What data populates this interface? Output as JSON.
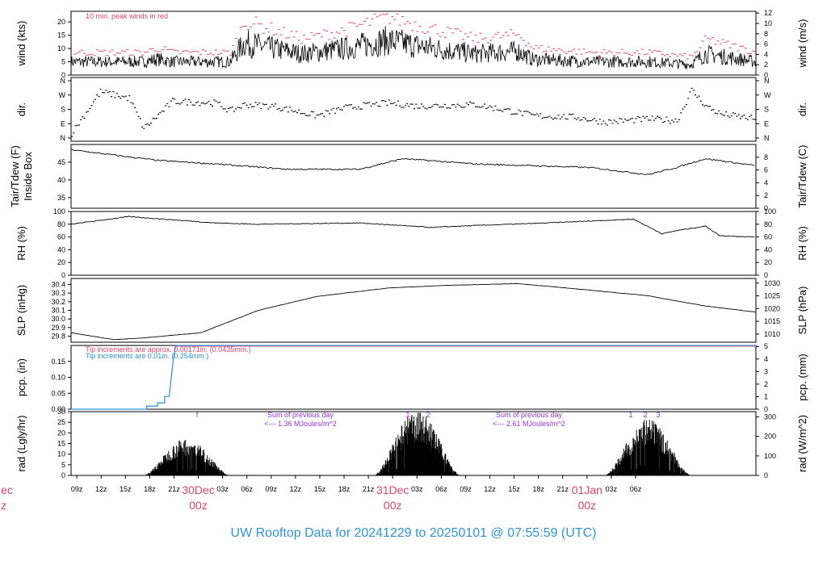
{
  "footer_title": "UW Rooftop Data for 20241229  to  20250101 @ 07:55:59  (UTC)",
  "colors": {
    "red": "#d9456a",
    "blue": "#2b8fd3",
    "purple": "#9b30d9",
    "foot": "#2e94d6"
  },
  "time_axis": {
    "ticks": [
      "09z",
      "12z",
      "15z",
      "18z",
      "21z",
      "00z",
      "03z",
      "06z",
      "09z",
      "12z",
      "15z",
      "18z",
      "21z",
      "00z",
      "03z",
      "06z",
      "09z",
      "12z",
      "15z",
      "18z",
      "21z",
      "00z",
      "03z",
      "06z"
    ],
    "day_labels": [
      {
        "date": "30Dec",
        "hour": "00z"
      },
      {
        "date": "31Dec",
        "hour": "00z"
      },
      {
        "date": "01Jan",
        "hour": "00z"
      }
    ],
    "edge_label": {
      "date": "ec",
      "hour": "z"
    }
  },
  "chart_data": [
    {
      "id": "wind",
      "type": "line",
      "ylabel": "wind (kts)",
      "ylabel_right": "wind (m/s)",
      "ylim": [
        0,
        24
      ],
      "yticks": [
        0,
        5,
        10,
        15,
        20
      ],
      "yticks_right": [
        0,
        2,
        4,
        6,
        8,
        10,
        12
      ],
      "annotation": "10 min. peak winds in red",
      "series_profile": {
        "x_hours": [
          0,
          10,
          12,
          14,
          22,
          24,
          26,
          32,
          38,
          44,
          48,
          56,
          62,
          64,
          72,
          74,
          80,
          86,
          88,
          95
        ],
        "y_kts": [
          5,
          5,
          6,
          5,
          5,
          12,
          11,
          8,
          10,
          13,
          11,
          8,
          9,
          6,
          5,
          5,
          5,
          4,
          8,
          5
        ]
      }
    },
    {
      "id": "dir",
      "type": "scatter",
      "ylabel": "dir.",
      "ylabel_right": "dir.",
      "yticks": [
        "N",
        "E",
        "S",
        "W",
        "N"
      ]
    },
    {
      "id": "temp",
      "type": "line",
      "ylabel": "Tair/Tdew (F)\nInside Box",
      "ylabel_right": "Tair/Tdew (C)",
      "ylim": [
        32,
        50
      ],
      "yticks": [
        35,
        40,
        45
      ],
      "yticks_right": [
        0,
        2,
        4,
        6,
        8
      ],
      "series_profile": {
        "x_hours": [
          0,
          6,
          10,
          12,
          20,
          30,
          40,
          46,
          56,
          64,
          72,
          80,
          84,
          88,
          95
        ],
        "y_f": [
          48.5,
          47,
          46,
          45.5,
          44.5,
          43,
          43,
          46,
          44.5,
          44,
          43.5,
          41.5,
          43.5,
          46,
          44
        ]
      }
    },
    {
      "id": "rh",
      "type": "line",
      "ylabel": "RH (%)",
      "ylabel_right": "RH (%)",
      "ylim": [
        0,
        100
      ],
      "yticks": [
        0,
        20,
        40,
        60,
        80,
        100
      ],
      "yticks_right": [
        0,
        20,
        40,
        60,
        80,
        100
      ],
      "series_profile": {
        "x_hours": [
          0,
          8,
          20,
          26,
          40,
          50,
          56,
          66,
          72,
          78,
          82,
          84,
          88,
          90,
          95
        ],
        "y_pct": [
          80,
          92,
          82,
          80,
          82,
          75,
          78,
          82,
          85,
          88,
          65,
          70,
          77,
          62,
          60
        ]
      }
    },
    {
      "id": "slp",
      "type": "line",
      "ylabel": "SLP (inHg)",
      "ylabel_right": "SLP (hPa)",
      "ylim": [
        29.73,
        30.47
      ],
      "yticks": [
        29.8,
        29.9,
        30.0,
        30.1,
        30.2,
        30.3,
        30.4
      ],
      "yticks_right": [
        1010,
        1015,
        1020,
        1025,
        1030
      ],
      "series_profile": {
        "x_hours": [
          0,
          6,
          10,
          18,
          26,
          34,
          44,
          52,
          62,
          70,
          80,
          88,
          95
        ],
        "y_inhg": [
          29.84,
          29.76,
          29.78,
          29.84,
          30.1,
          30.26,
          30.36,
          30.39,
          30.41,
          30.35,
          30.27,
          30.15,
          30.08
        ]
      }
    },
    {
      "id": "pcp",
      "type": "line",
      "ylabel": "pcp. (in)",
      "ylabel_right": "pcp. (mm)",
      "ylim": [
        0,
        0.2
      ],
      "yticks": [
        0.0,
        0.05,
        0.1,
        0.15
      ],
      "yticks_right": [
        0,
        1,
        2,
        3,
        4,
        5
      ],
      "annotation_red": "Tip increments are approx. 0.00171in. (0.0435mm.)",
      "annotation_blue": "Tip increments are 0.01in. (0.254mm.)",
      "series_profile": {
        "x_hours": [
          0,
          10.5,
          12,
          13,
          14,
          14.5,
          95
        ],
        "y_in": [
          0,
          0,
          0.01,
          0.02,
          0.04,
          0.2,
          0.2
        ]
      }
    },
    {
      "id": "rad",
      "type": "area",
      "ylabel": "rad (Lgly/hr)",
      "ylabel_right": "rad (W/m^2)",
      "ylim": [
        0,
        30
      ],
      "yticks": [
        0,
        5,
        10,
        15,
        20,
        25,
        30
      ],
      "yticks_right": [
        0,
        100,
        200,
        300
      ],
      "annotations": [
        {
          "text": "Sum of previous day",
          "line2": "<--- 1.36 MJoules/m^2"
        },
        {
          "text": "Sum of previous day",
          "line2": "<--- 2.61 MJoules/m^2"
        }
      ],
      "markers": [
        "f",
        "1",
        "2",
        "1",
        "2",
        "3"
      ],
      "days": [
        {
          "start_h": 10,
          "end_h": 22,
          "peak": 16
        },
        {
          "start_h": 42,
          "end_h": 54,
          "peak": 28
        },
        {
          "start_h": 74,
          "end_h": 86,
          "peak": 24
        }
      ]
    }
  ]
}
